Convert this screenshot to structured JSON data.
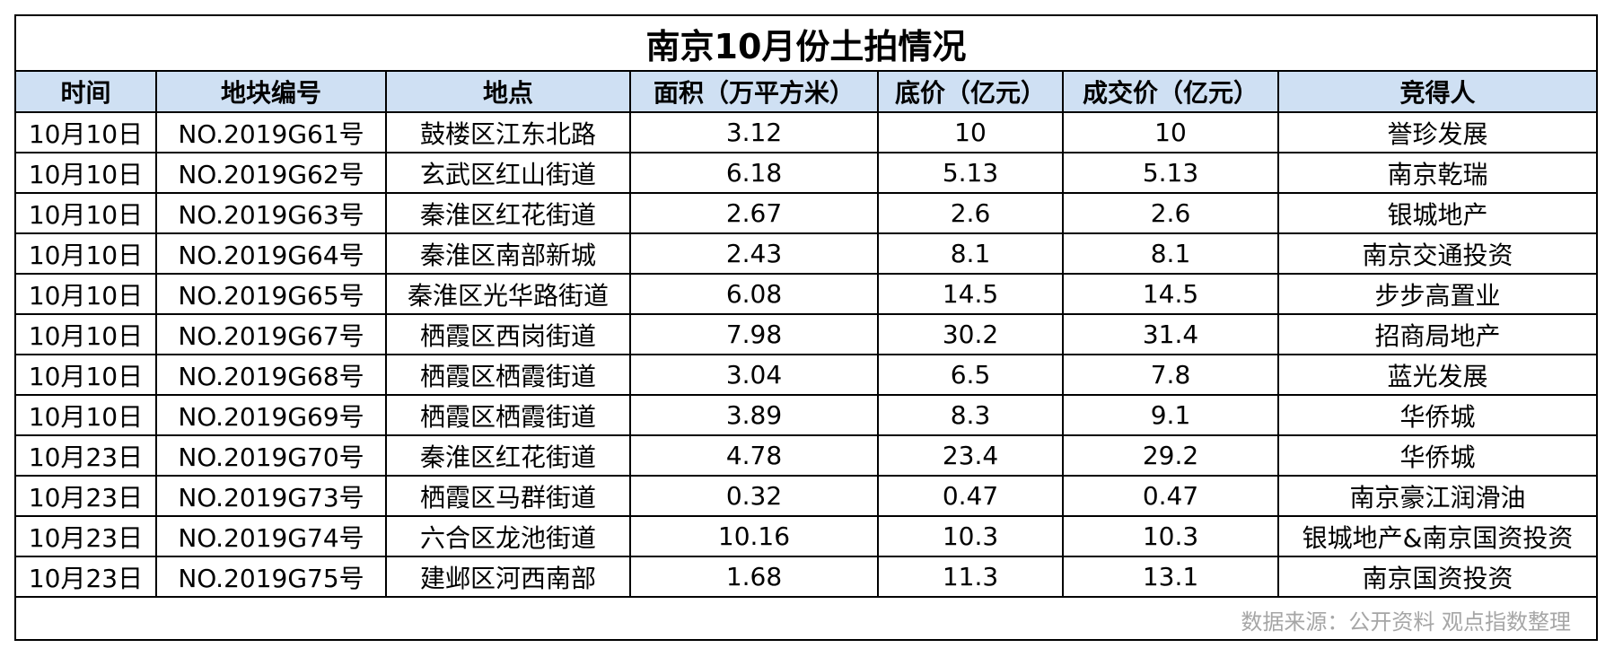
{
  "chart_data": {
    "type": "table",
    "title": "南京10月份土拍情况",
    "columns": [
      "时间",
      "地块编号",
      "地点",
      "面积（万平方米）",
      "底价（亿元）",
      "成交价（亿元）",
      "竞得人"
    ],
    "rows": [
      [
        "10月10日",
        "NO.2019G61号",
        "鼓楼区江东北路",
        "3.12",
        "10",
        "10",
        "誉珍发展"
      ],
      [
        "10月10日",
        "NO.2019G62号",
        "玄武区红山街道",
        "6.18",
        "5.13",
        "5.13",
        "南京乾瑞"
      ],
      [
        "10月10日",
        "NO.2019G63号",
        "秦淮区红花街道",
        "2.67",
        "2.6",
        "2.6",
        "银城地产"
      ],
      [
        "10月10日",
        "NO.2019G64号",
        "秦淮区南部新城",
        "2.43",
        "8.1",
        "8.1",
        "南京交通投资"
      ],
      [
        "10月10日",
        "NO.2019G65号",
        "秦淮区光华路街道",
        "6.08",
        "14.5",
        "14.5",
        "步步高置业"
      ],
      [
        "10月10日",
        "NO.2019G67号",
        "栖霞区西岗街道",
        "7.98",
        "30.2",
        "31.4",
        "招商局地产"
      ],
      [
        "10月10日",
        "NO.2019G68号",
        "栖霞区栖霞街道",
        "3.04",
        "6.5",
        "7.8",
        "蓝光发展"
      ],
      [
        "10月10日",
        "NO.2019G69号",
        "栖霞区栖霞街道",
        "3.89",
        "8.3",
        "9.1",
        "华侨城"
      ],
      [
        "10月23日",
        "NO.2019G70号",
        "秦淮区红花街道",
        "4.78",
        "23.4",
        "29.2",
        "华侨城"
      ],
      [
        "10月23日",
        "NO.2019G73号",
        "栖霞区马群街道",
        "0.32",
        "0.47",
        "0.47",
        "南京豪江润滑油"
      ],
      [
        "10月23日",
        "NO.2019G74号",
        "六合区龙池街道",
        "10.16",
        "10.3",
        "10.3",
        "银城地产&南京国资投资"
      ],
      [
        "10月23日",
        "NO.2019G75号",
        "建邺区河西南部",
        "1.68",
        "11.3",
        "13.1",
        "南京国资投资"
      ]
    ],
    "source_note": "数据来源：公开资料  观点指数整理"
  }
}
